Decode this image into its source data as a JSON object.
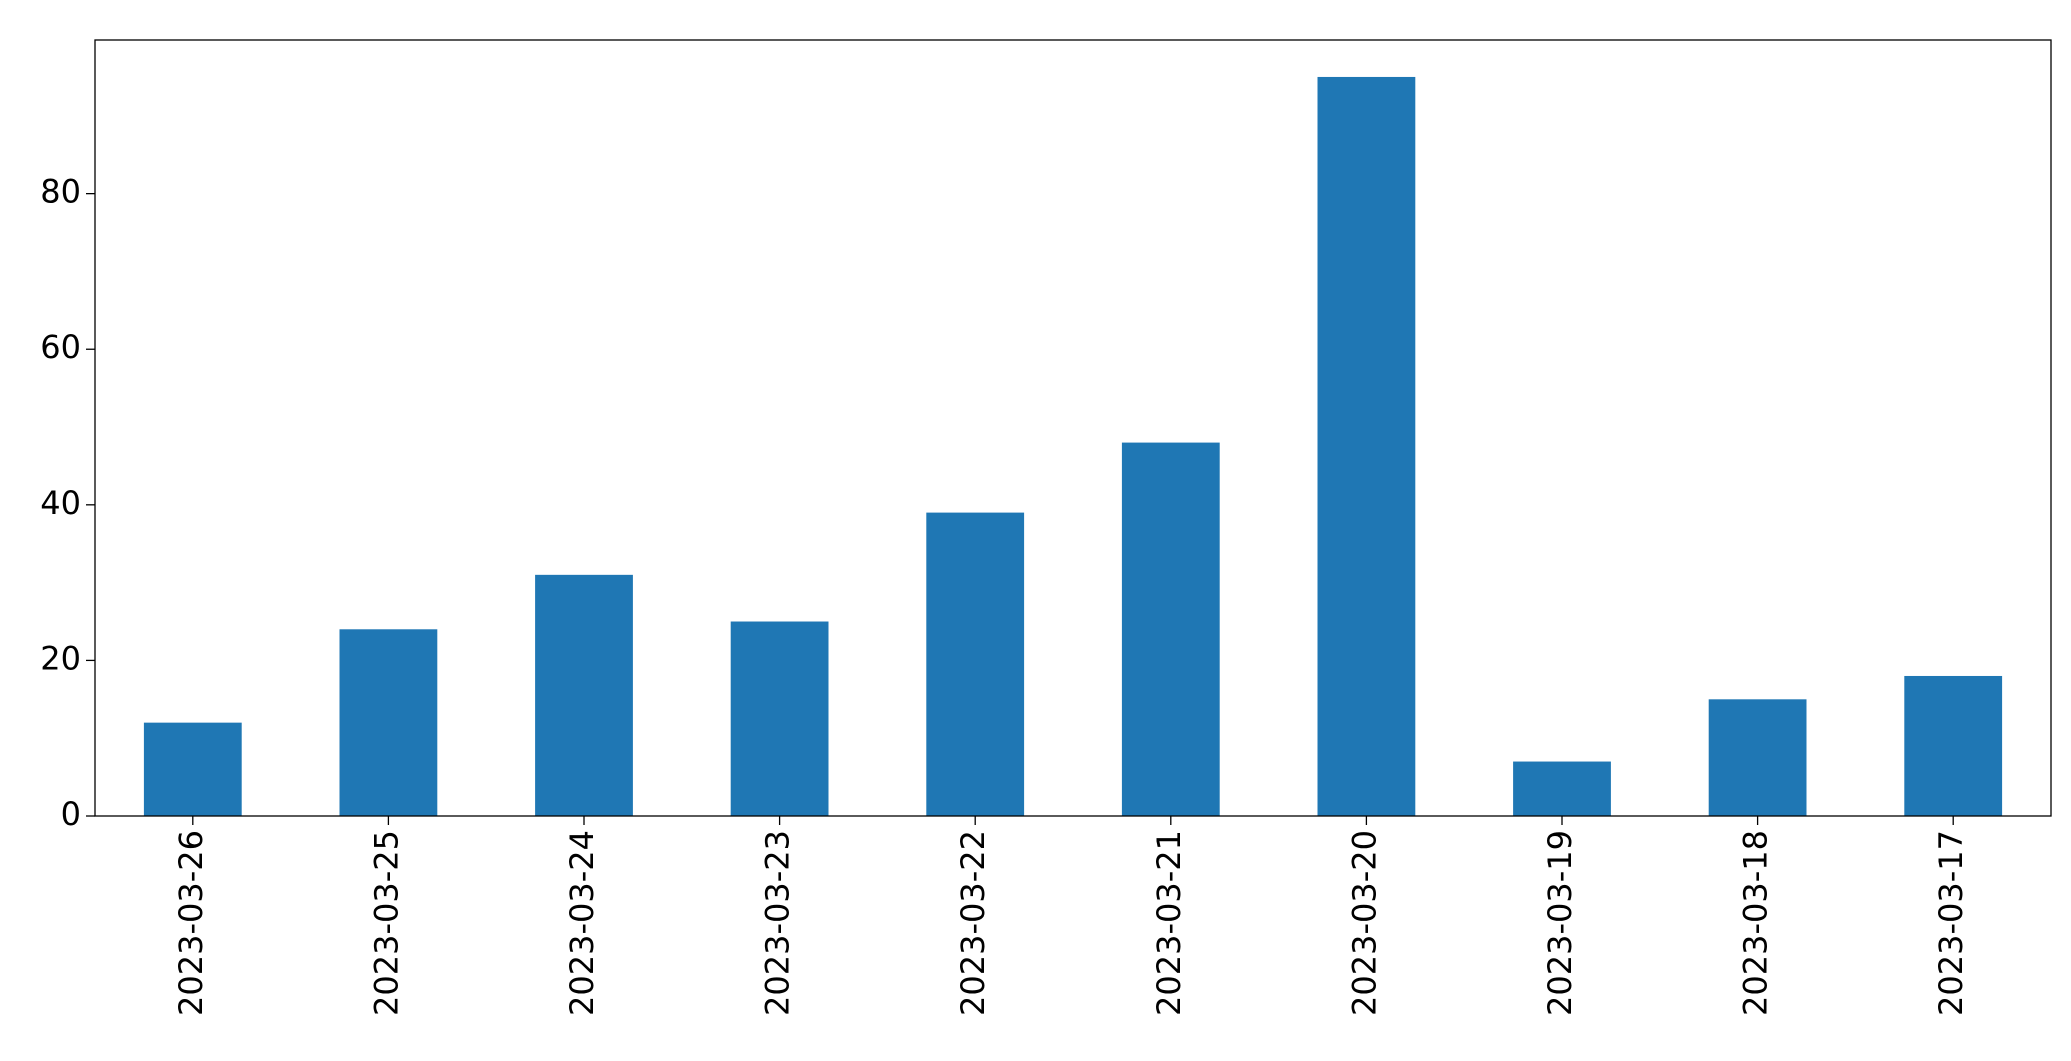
{
  "chart_data": {
    "type": "bar",
    "categories": [
      "2023-03-26",
      "2023-03-25",
      "2023-03-24",
      "2023-03-23",
      "2023-03-22",
      "2023-03-21",
      "2023-03-20",
      "2023-03-19",
      "2023-03-18",
      "2023-03-17"
    ],
    "values": [
      12,
      24,
      31,
      25,
      39,
      48,
      95,
      7,
      15,
      18
    ],
    "color": "#1f77b4",
    "ylim": [
      0,
      99.75
    ],
    "yticks": [
      0,
      20,
      40,
      60,
      80
    ],
    "grid": false
  }
}
